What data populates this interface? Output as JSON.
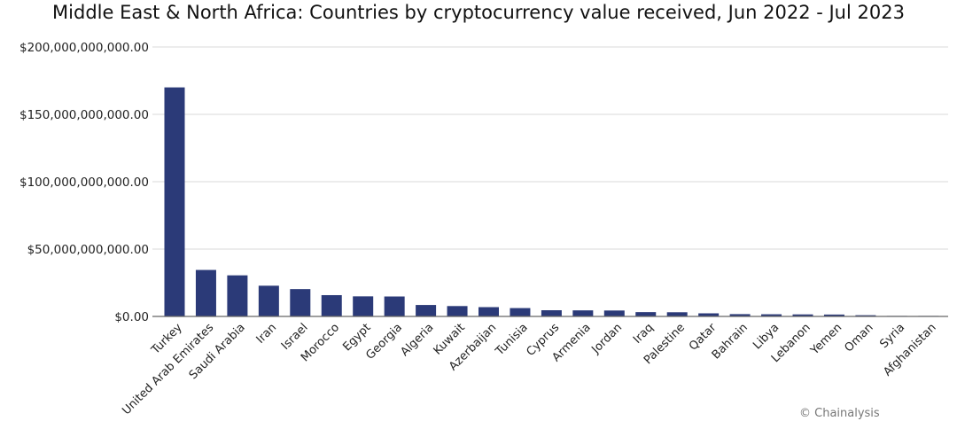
{
  "chart_data": {
    "type": "bar",
    "title": "Middle East & North Africa: Countries by cryptocurrency value received, Jun 2022 - Jul 2023",
    "xlabel": "",
    "ylabel": "",
    "ylim": [
      0,
      200000000000
    ],
    "yticks": [
      {
        "value": 0,
        "label": "$0.00"
      },
      {
        "value": 50000000000,
        "label": "$50,000,000,000.00"
      },
      {
        "value": 100000000000,
        "label": "$100,000,000,000.00"
      },
      {
        "value": 150000000000,
        "label": "$150,000,000,000.00"
      },
      {
        "value": 200000000000,
        "label": "$200,000,000,000.00"
      }
    ],
    "categories": [
      "Turkey",
      "United Arab Emirates",
      "Saudi Arabia",
      "Iran",
      "Israel",
      "Morocco",
      "Egypt",
      "Georgia",
      "Algeria",
      "Kuwait",
      "Azerbaijan",
      "Tunisia",
      "Cyprus",
      "Armenia",
      "Jordan",
      "Iraq",
      "Palestine",
      "Qatar",
      "Bahrain",
      "Libya",
      "Lebanon",
      "Yemen",
      "Oman",
      "Syria",
      "Afghanistan"
    ],
    "values": [
      170000000000,
      34500000000,
      30500000000,
      22800000000,
      20300000000,
      15800000000,
      14900000000,
      14800000000,
      8500000000,
      7700000000,
      6900000000,
      6200000000,
      4600000000,
      4500000000,
      4400000000,
      3200000000,
      3100000000,
      2300000000,
      1700000000,
      1600000000,
      1500000000,
      1400000000,
      900000000,
      100000000,
      50000000
    ],
    "grid": true,
    "legend": "none",
    "bar_color": "#2b3a78"
  },
  "credit": "© Chainalysis"
}
